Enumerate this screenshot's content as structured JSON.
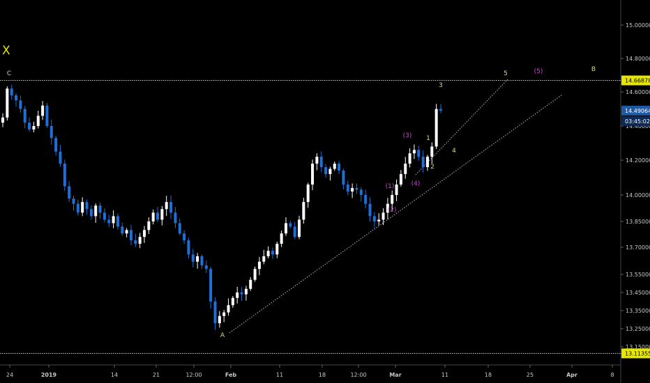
{
  "symbol_mark": "X",
  "colors": {
    "background": "#000000",
    "candle_up": "#ffffff",
    "candle_down": "#1e6fd8",
    "hline": "#e6e600",
    "trendline": "#bdbdbd",
    "label_yellow": "#c8e66e",
    "label_magenta": "#cc44cc",
    "price_tag": "#1e5aa8"
  },
  "chart_data": {
    "type": "candlestick",
    "x_ticks": [
      "24",
      "2019",
      "14",
      "21",
      "12:00",
      "Feb",
      "11",
      "18",
      "12:00",
      "Mar",
      "11",
      "18",
      "25",
      "Apr",
      "8"
    ],
    "y_ticks": [
      "15.00000",
      "14.80000",
      "14.60000",
      "14.40000",
      "14.20000",
      "14.00000",
      "13.85000",
      "13.70000",
      "13.55000",
      "13.45000",
      "13.35000",
      "13.25000",
      "13.15000"
    ],
    "ylim": [
      13.1,
      15.1
    ],
    "last_price": "14.49064",
    "countdown": "03:45:02",
    "horizontal_levels": [
      {
        "value": 14.66878,
        "label": "14.66878"
      },
      {
        "value": 13.11355,
        "label": "13.11355"
      }
    ],
    "closes": [
      14.45,
      14.62,
      14.58,
      14.55,
      14.5,
      14.42,
      14.38,
      14.4,
      14.46,
      14.52,
      14.4,
      14.33,
      14.25,
      14.18,
      14.05,
      13.98,
      13.95,
      13.9,
      13.96,
      13.92,
      13.88,
      13.94,
      13.9,
      13.86,
      13.84,
      13.88,
      13.82,
      13.78,
      13.8,
      13.74,
      13.72,
      13.76,
      13.8,
      13.85,
      13.9,
      13.86,
      13.92,
      13.96,
      13.9,
      13.84,
      13.78,
      13.74,
      13.66,
      13.62,
      13.65,
      13.6,
      13.58,
      13.4,
      13.28,
      13.32,
      13.34,
      13.38,
      13.42,
      13.45,
      13.44,
      13.47,
      13.52,
      13.58,
      13.62,
      13.65,
      13.68,
      13.66,
      13.72,
      13.78,
      13.84,
      13.82,
      13.76,
      13.86,
      13.96,
      14.06,
      14.18,
      14.22,
      14.16,
      14.12,
      14.15,
      14.18,
      14.14,
      14.06,
      14.02,
      14.04,
      14.03,
      14.0,
      13.95,
      13.88,
      13.85,
      13.86,
      13.9,
      13.95,
      14.0,
      14.06,
      14.12,
      14.18,
      14.24,
      14.26,
      14.22,
      14.16,
      14.22,
      14.28,
      14.5,
      14.49
    ]
  },
  "wave_labels": [
    {
      "text": "C",
      "style": "yellow"
    },
    {
      "text": "A",
      "style": "yellow"
    },
    {
      "text": "B",
      "style": "yellow"
    },
    {
      "text": "1",
      "style": "yellow"
    },
    {
      "text": "2",
      "style": "yellow"
    },
    {
      "text": "3",
      "style": "yellow"
    },
    {
      "text": "4",
      "style": "yellow"
    },
    {
      "text": "5",
      "style": "yellow"
    },
    {
      "text": "(1)",
      "style": "magenta"
    },
    {
      "text": "(2)",
      "style": "magenta"
    },
    {
      "text": "(3)",
      "style": "magenta"
    },
    {
      "text": "(4)",
      "style": "magenta"
    },
    {
      "text": "(5)",
      "style": "magenta"
    }
  ]
}
